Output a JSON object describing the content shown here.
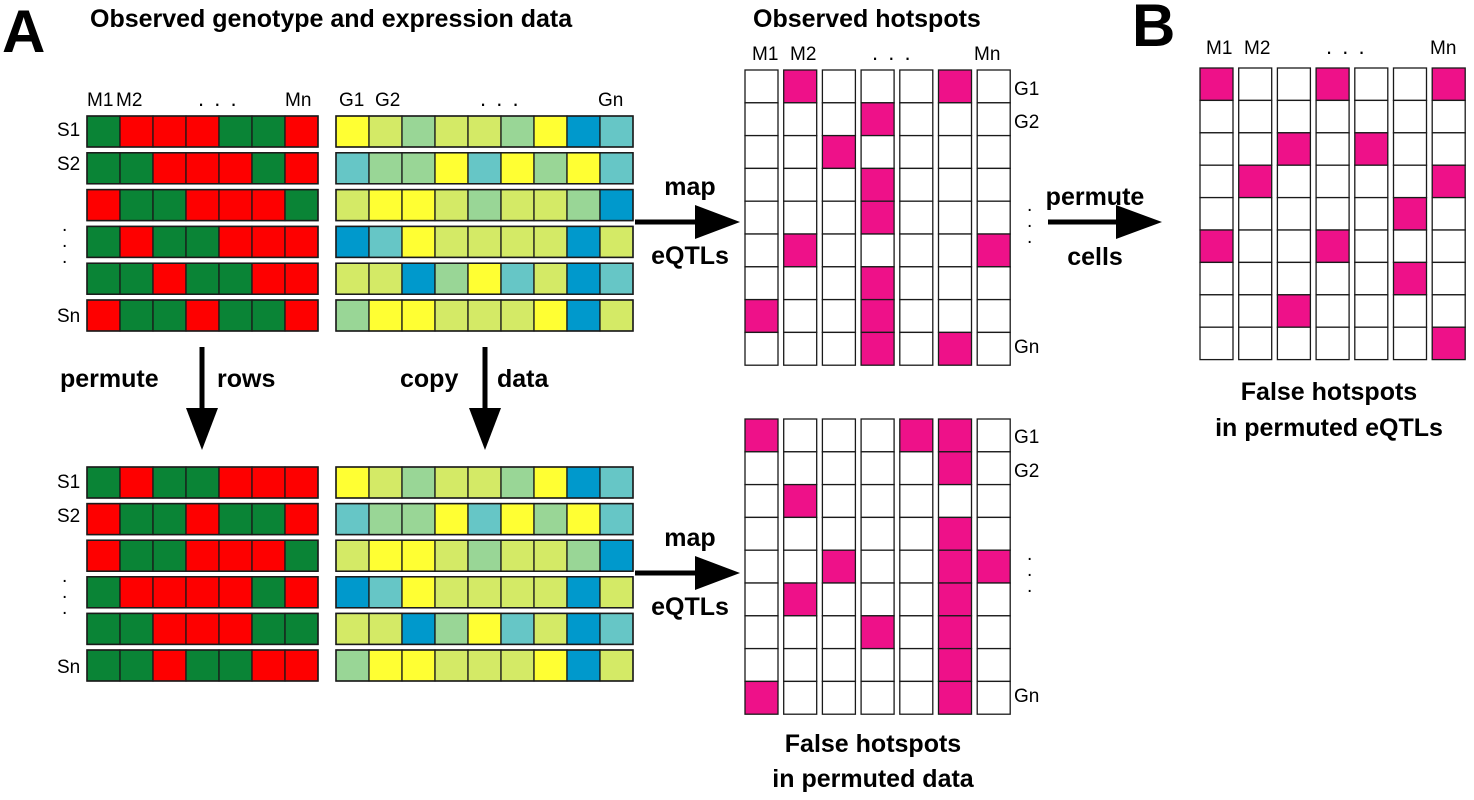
{
  "panels": {
    "a": "A",
    "b": "B"
  },
  "titles": {
    "observed_data": "Observed genotype and expression data",
    "observed_hotspots": "Observed hotspots",
    "false_perm_data_1": "False hotspots",
    "false_perm_data_2": "in permuted data",
    "false_perm_eqtls_1": "False hotspots",
    "false_perm_eqtls_2": "in permuted eQTLs"
  },
  "labels": {
    "m1": "M1",
    "m2": "M2",
    "mn": "Mn",
    "g1": "G1",
    "g2": "G2",
    "gn": "Gn",
    "s1": "S1",
    "s2": "S2",
    "sn": "Sn",
    "ellipsis": ". . ."
  },
  "arrows": {
    "permute": "permute",
    "rows": "rows",
    "copy": "copy",
    "data": "data",
    "map": "map",
    "eqtls": "eQTLs",
    "permute_cells": "permute",
    "cells": "cells"
  },
  "colors": {
    "geno": {
      "G": "#0a8436",
      "R": "#fe0000"
    },
    "expr": {
      "y": "#ffff33",
      "l": "#d4ea66",
      "m": "#99d696",
      "t": "#66c6c6",
      "b": "#0099cc"
    },
    "hot": "#ee1189",
    "empty": "#ffffff"
  },
  "genotype_observed": [
    "GRRRGGR",
    "GGRRRGR",
    "RGGRRRG",
    "GRGGRRR",
    "GGRGGRR",
    "RGGRGGR"
  ],
  "genotype_permuted": [
    "GRGGRRR",
    "RGGRGGR",
    "RGGRRRG",
    "GRRRRGR",
    "GGRRRGG",
    "GGRGGRR"
  ],
  "expression_observed": [
    "ylmllmybt",
    "tmmytymyt",
    "lyylmllmb",
    "btyllllbl",
    "llbmytlbt",
    "myylllybl"
  ],
  "hotspots_observed": [
    "0100010",
    "0001000",
    "0010000",
    "0001000",
    "0001000",
    "0100001",
    "0001000",
    "1001000",
    "0001010"
  ],
  "hotspots_false_data": [
    "1000110",
    "0000010",
    "0100000",
    "0000010",
    "0010011",
    "0100010",
    "0001010",
    "0000010",
    "1000010"
  ],
  "hotspots_false_eqtls": [
    "1001001",
    "0000000",
    "0010100",
    "0100001",
    "0000010",
    "1001000",
    "0000010",
    "0010000",
    "0000001"
  ]
}
